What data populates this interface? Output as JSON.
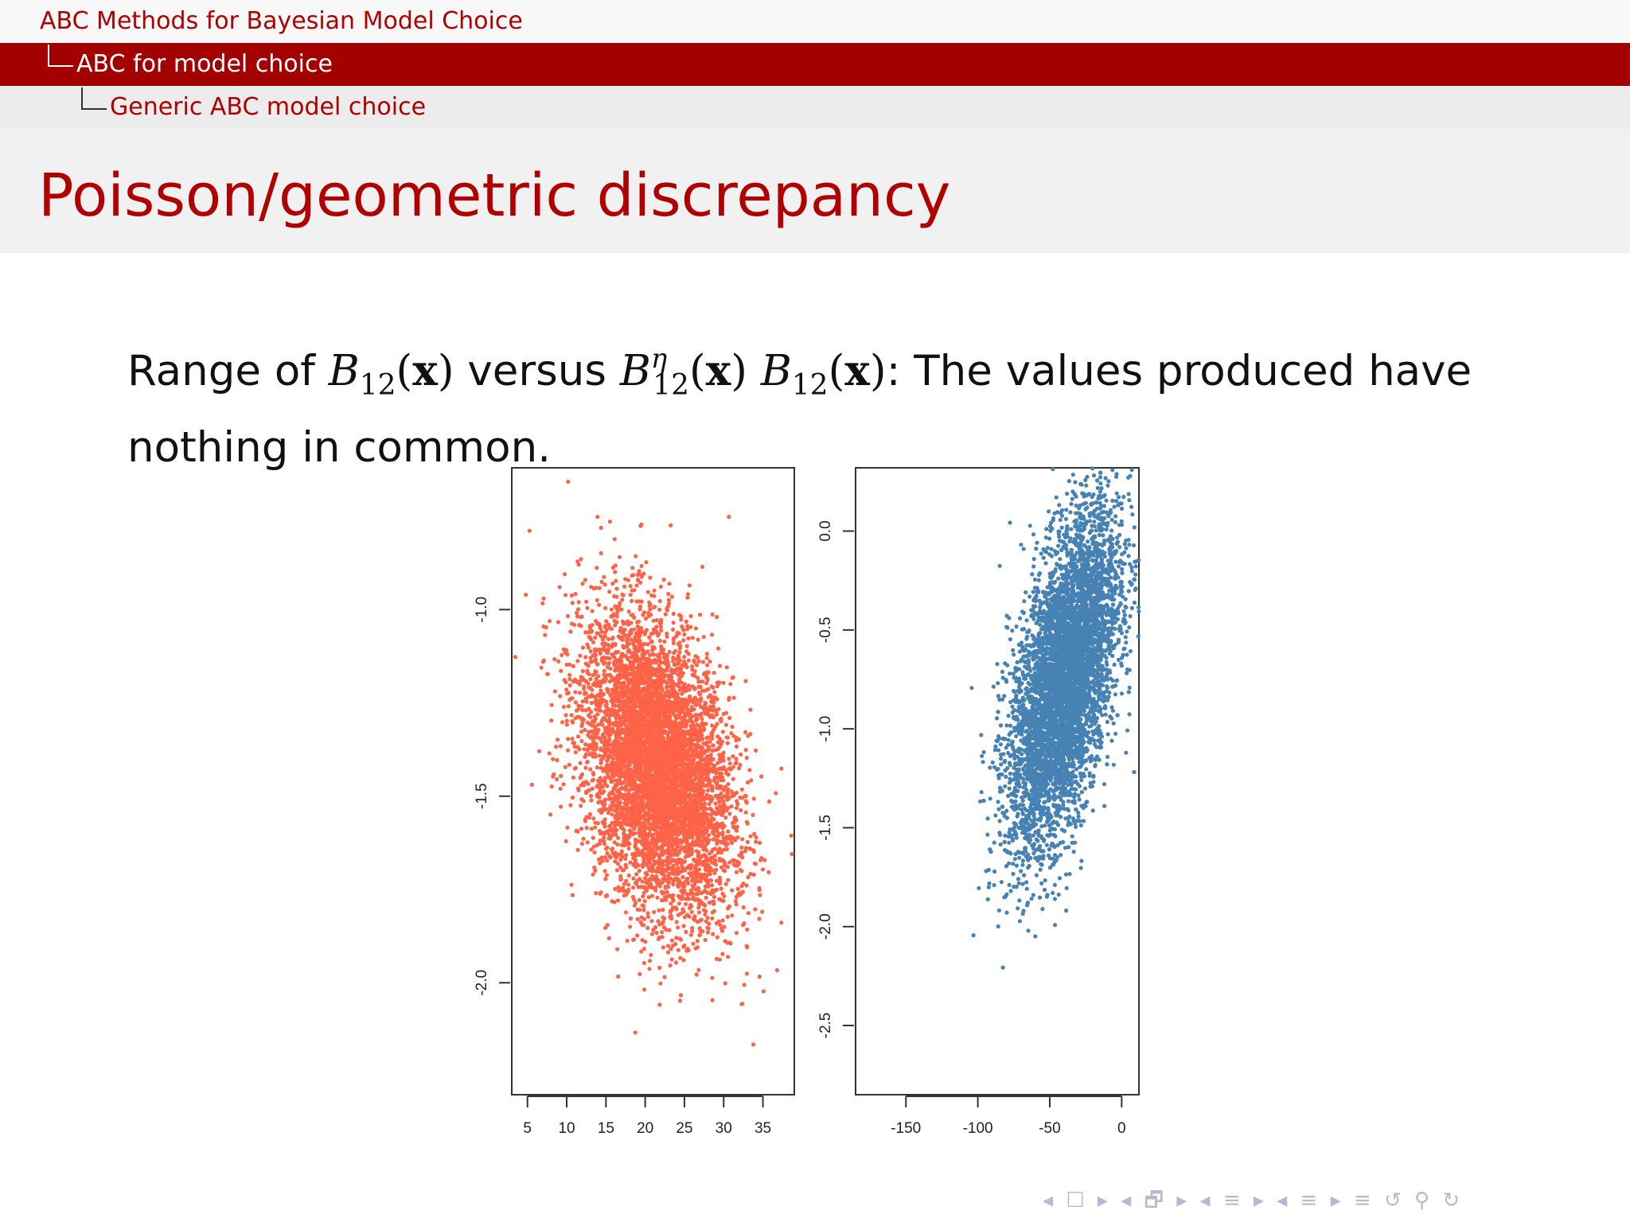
{
  "header": {
    "section": "ABC Methods for Bayesian Model Choice",
    "subsection": "ABC for model choice",
    "subsubsection": "Generic ABC model choice"
  },
  "frame": {
    "title": "Poisson/geometric discrepancy",
    "text_lead": "Range of",
    "text_versus": "versus",
    "text_tail": ": The values produced have",
    "text_line2": "nothing in common."
  },
  "colors": {
    "left_points": "#ff6347",
    "right_points": "#4682b4",
    "title_red": "#b00000",
    "header_band": "#a30000"
  },
  "chart_data": [
    {
      "type": "scatter",
      "title": "",
      "xlabel": "",
      "ylabel": "",
      "xlim": [
        3,
        39
      ],
      "ylim": [
        -2.3,
        -0.62
      ],
      "xticks": [
        "5",
        "10",
        "15",
        "20",
        "25",
        "30",
        "35"
      ],
      "yticks": [
        "-1.0",
        "-1.5",
        "-2.0"
      ],
      "point_color": "#ff6347",
      "distribution": {
        "x_mean": 21.5,
        "x_sd": 4.8,
        "y_mean": -1.42,
        "y_sd": 0.2,
        "correlation": -0.35,
        "n": 6000
      }
    },
    {
      "type": "scatter",
      "title": "",
      "xlabel": "",
      "ylabel": "",
      "xlim": [
        -185,
        12
      ],
      "ylim": [
        -2.85,
        0.32
      ],
      "xticks": [
        "-150",
        "-100",
        "-50",
        "0"
      ],
      "yticks": [
        "0.0",
        "-0.5",
        "-1.0",
        "-1.5",
        "-2.0",
        "-2.5"
      ],
      "point_color": "#4682b4",
      "distribution": {
        "x_mean": -40,
        "x_sd": 19,
        "y_mean": -0.75,
        "y_sd": 0.42,
        "correlation": 0.55,
        "n": 6000
      }
    }
  ],
  "navigation": {
    "icons": [
      "nav-frame-left-icon",
      "nav-frame-right-icon",
      "nav-subsection-icon",
      "nav-section-icon",
      "nav-search-icon",
      "nav-back-icon"
    ]
  }
}
